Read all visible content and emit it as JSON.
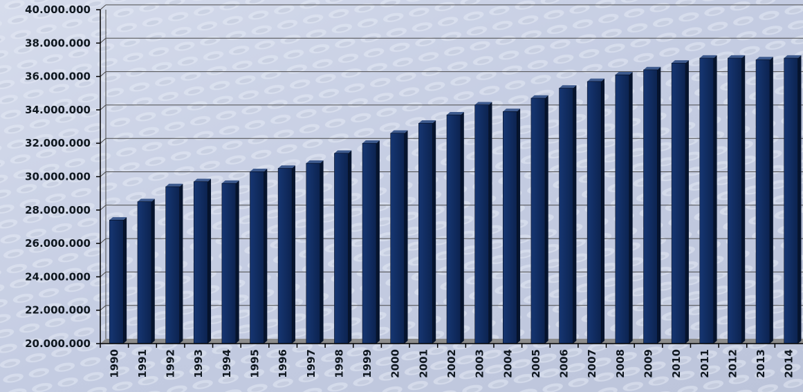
{
  "chart_data": {
    "type": "bar",
    "title": "",
    "xlabel": "",
    "ylabel": "",
    "categories": [
      "1990",
      "1991",
      "1992",
      "1993",
      "1994",
      "1995",
      "1996",
      "1997",
      "1998",
      "1999",
      "2000",
      "2001",
      "2002",
      "2003",
      "2004",
      "2005",
      "2006",
      "2007",
      "2008",
      "2009",
      "2010",
      "2011",
      "2012",
      "2013",
      "2014"
    ],
    "series": [
      {
        "values": [
          27400000,
          28500000,
          29400000,
          29700000,
          29600000,
          30300000,
          30500000,
          30800000,
          31400000,
          32000000,
          32600000,
          33200000,
          33700000,
          34300000,
          33900000,
          34700000,
          35300000,
          35700000,
          36100000,
          36400000,
          36800000,
          37100000,
          37100000,
          37000000,
          37100000
        ]
      }
    ],
    "ylim": [
      20000000,
      40000000
    ],
    "yticks": [
      "20.000.000",
      "22.000.000",
      "24.000.000",
      "26.000.000",
      "28.000.000",
      "30.000.000",
      "32.000.000",
      "34.000.000",
      "36.000.000",
      "38.000.000",
      "40.000.000"
    ],
    "grid": true,
    "legend": "none",
    "colors": {
      "bar_front": "#0f2a5c",
      "bar_side": "#06142e",
      "bar_top": "#3d5a8e",
      "floor": "#8c8c8c",
      "grid": "#4a4a4a"
    }
  }
}
